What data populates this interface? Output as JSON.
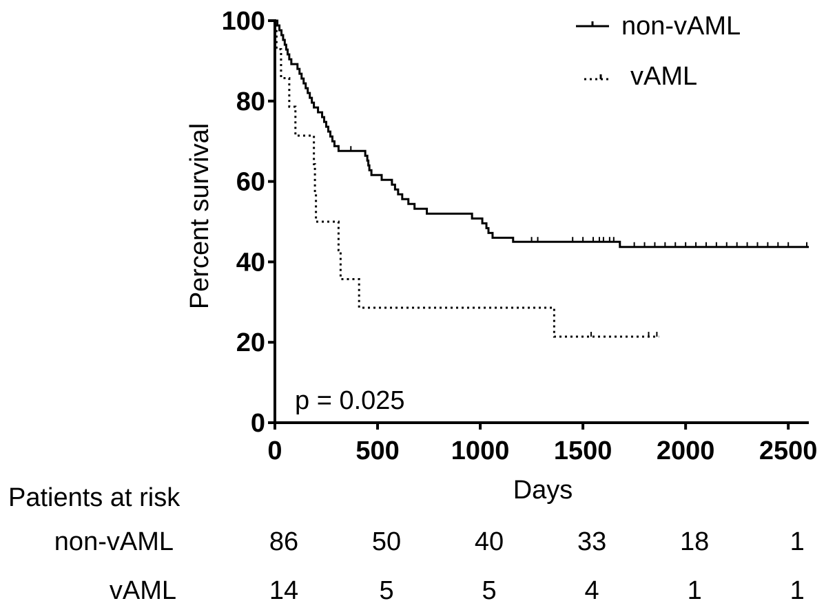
{
  "chart_data": {
    "type": "line",
    "subtype": "kaplan-meier",
    "xlabel": "Days",
    "ylabel": "Percent survival",
    "xlim": [
      0,
      2600
    ],
    "ylim": [
      0,
      100
    ],
    "x_ticks": [
      0,
      500,
      1000,
      1500,
      2000,
      2500
    ],
    "y_ticks": [
      0,
      20,
      40,
      60,
      80,
      100
    ],
    "grid": false,
    "legend_position": "top-right",
    "annotation": "p = 0.025",
    "series": [
      {
        "name": "non-vAML",
        "style": "solid",
        "color": "#000000",
        "points": [
          [
            0,
            100
          ],
          [
            12,
            98.8
          ],
          [
            22,
            97.6
          ],
          [
            32,
            96.4
          ],
          [
            40,
            95.2
          ],
          [
            48,
            94
          ],
          [
            55,
            92.8
          ],
          [
            62,
            91.6
          ],
          [
            70,
            90.4
          ],
          [
            80,
            89.2
          ],
          [
            110,
            88
          ],
          [
            120,
            86.8
          ],
          [
            130,
            85.6
          ],
          [
            140,
            84.4
          ],
          [
            150,
            83.2
          ],
          [
            160,
            82
          ],
          [
            170,
            80.8
          ],
          [
            180,
            79.6
          ],
          [
            190,
            78.4
          ],
          [
            210,
            77.2
          ],
          [
            230,
            76
          ],
          [
            240,
            74.8
          ],
          [
            250,
            73.6
          ],
          [
            260,
            72.4
          ],
          [
            270,
            71.2
          ],
          [
            280,
            70
          ],
          [
            290,
            68.8
          ],
          [
            310,
            67.6
          ],
          [
            440,
            66.4
          ],
          [
            450,
            65.2
          ],
          [
            455,
            64
          ],
          [
            460,
            62.8
          ],
          [
            470,
            61.6
          ],
          [
            520,
            60.4
          ],
          [
            570,
            59.2
          ],
          [
            585,
            58
          ],
          [
            600,
            56.8
          ],
          [
            620,
            55.6
          ],
          [
            650,
            54.4
          ],
          [
            680,
            53.2
          ],
          [
            740,
            52
          ],
          [
            960,
            50.8
          ],
          [
            1010,
            49.6
          ],
          [
            1030,
            48.4
          ],
          [
            1040,
            47.2
          ],
          [
            1060,
            46
          ],
          [
            1160,
            45
          ],
          [
            1680,
            43.7
          ],
          [
            2600,
            43.7
          ]
        ],
        "censored": [
          [
            370,
            67.6
          ],
          [
            1250,
            45
          ],
          [
            1280,
            45
          ],
          [
            1450,
            45
          ],
          [
            1500,
            45
          ],
          [
            1550,
            45
          ],
          [
            1580,
            45
          ],
          [
            1600,
            45
          ],
          [
            1630,
            45
          ],
          [
            1650,
            45
          ],
          [
            1750,
            43.7
          ],
          [
            1800,
            43.7
          ],
          [
            1850,
            43.7
          ],
          [
            1900,
            43.7
          ],
          [
            1950,
            43.7
          ],
          [
            2000,
            43.7
          ],
          [
            2050,
            43.7
          ],
          [
            2100,
            43.7
          ],
          [
            2150,
            43.7
          ],
          [
            2200,
            43.7
          ],
          [
            2250,
            43.7
          ],
          [
            2300,
            43.7
          ],
          [
            2350,
            43.7
          ],
          [
            2400,
            43.7
          ],
          [
            2450,
            43.7
          ],
          [
            2500,
            43.7
          ],
          [
            2590,
            43.7
          ]
        ]
      },
      {
        "name": "vAML",
        "style": "dotted",
        "color": "#000000",
        "points": [
          [
            0,
            100
          ],
          [
            8,
            92.9
          ],
          [
            30,
            85.7
          ],
          [
            70,
            78.6
          ],
          [
            100,
            71.4
          ],
          [
            190,
            64.3
          ],
          [
            195,
            57.1
          ],
          [
            200,
            50
          ],
          [
            310,
            42.9
          ],
          [
            320,
            35.7
          ],
          [
            410,
            28.6
          ],
          [
            1360,
            21.4
          ],
          [
            1870,
            21.4
          ]
        ],
        "censored": [
          [
            1540,
            21.4
          ],
          [
            1820,
            21.4
          ],
          [
            1860,
            21.4
          ]
        ]
      }
    ],
    "at_risk": {
      "title": "Patients at risk",
      "times": [
        0,
        500,
        1000,
        1500,
        2000,
        2500
      ],
      "rows": [
        {
          "label": "non-vAML",
          "values": [
            86,
            50,
            40,
            33,
            18,
            1
          ]
        },
        {
          "label": "vAML",
          "values": [
            14,
            5,
            5,
            4,
            1,
            1
          ]
        }
      ]
    }
  }
}
